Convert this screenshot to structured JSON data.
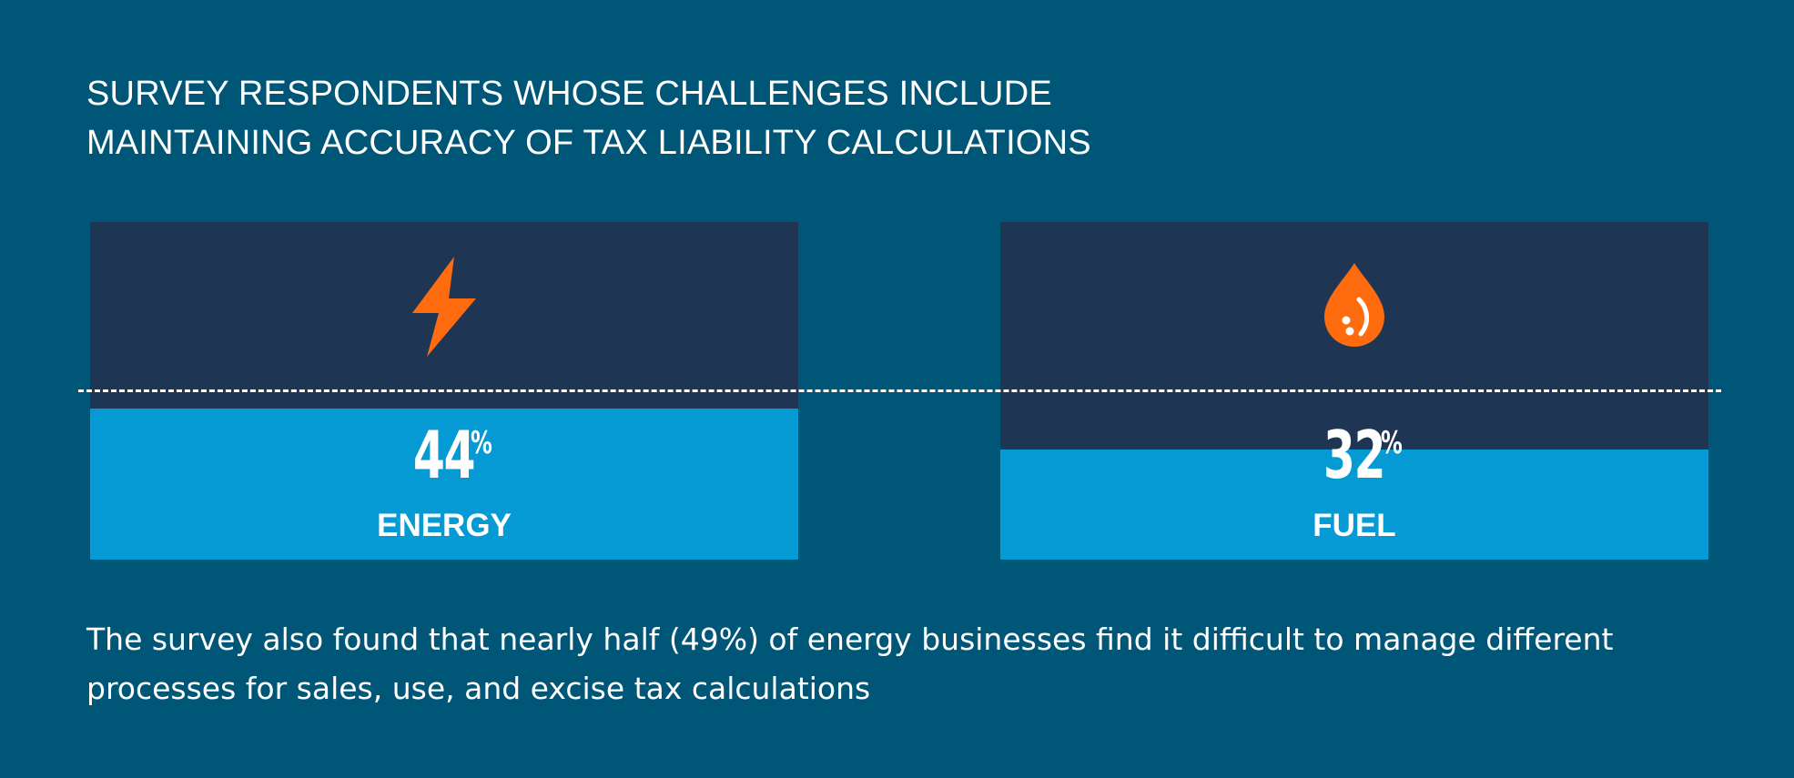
{
  "colors": {
    "background": "#005677",
    "panel": "#1e3653",
    "fill": "#059ad4",
    "icon": "#ff6b0f",
    "text": "#ffffff"
  },
  "chart_data": {
    "type": "bar",
    "title_lines": [
      "SURVEY RESPONDENTS WHOSE CHALLENGES INCLUDE",
      "MAINTAINING ACCURACY OF TAX LIABILITY CALCULATIONS"
    ],
    "categories": [
      "ENERGY",
      "FUEL"
    ],
    "values": [
      44,
      32
    ],
    "value_labels": [
      "44",
      "32"
    ],
    "unit": "%",
    "icons": [
      "lightning-bolt-icon",
      "fuel-drop-icon"
    ],
    "ylim": [
      0,
      100
    ],
    "reference_line": 49
  },
  "note": "The survey also found that nearly half (49%) of energy businesses find it difficult to manage different processes for sales, use, and excise tax calculations"
}
